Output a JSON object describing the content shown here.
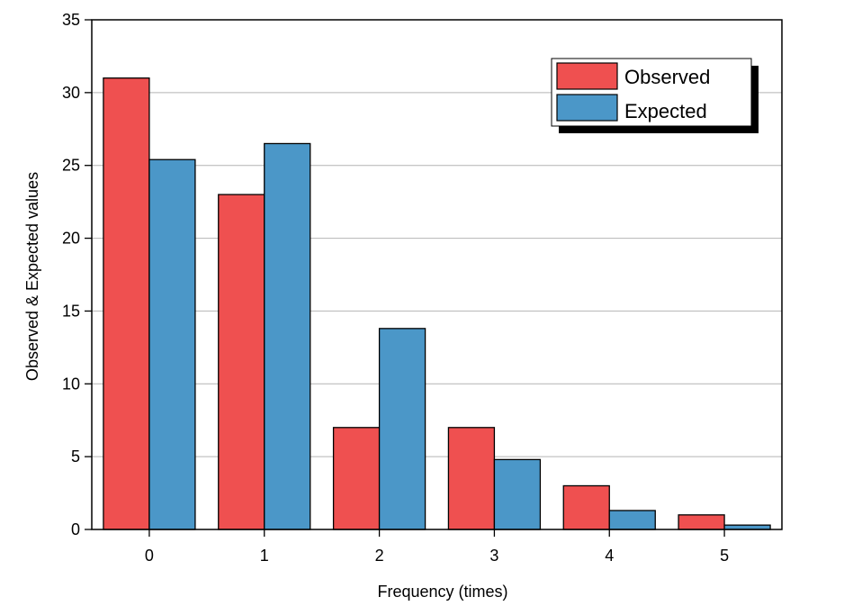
{
  "chart_data": {
    "type": "bar",
    "title": "",
    "xlabel": "Frequency (times)",
    "ylabel": "Observed & Expected values",
    "categories": [
      "0",
      "1",
      "2",
      "3",
      "4",
      "5"
    ],
    "series": [
      {
        "name": "Observed",
        "color": "#ef5050",
        "values": [
          31,
          23,
          7,
          7,
          3,
          1
        ]
      },
      {
        "name": "Expected",
        "color": "#4b97c8",
        "values": [
          25.4,
          26.5,
          13.8,
          4.8,
          1.3,
          0.3
        ]
      }
    ],
    "ylim": [
      0,
      35
    ],
    "yticks": [
      "0",
      "5",
      "10",
      "15",
      "20",
      "25",
      "30",
      "35"
    ],
    "grid": true,
    "legend_position": "top-right"
  }
}
